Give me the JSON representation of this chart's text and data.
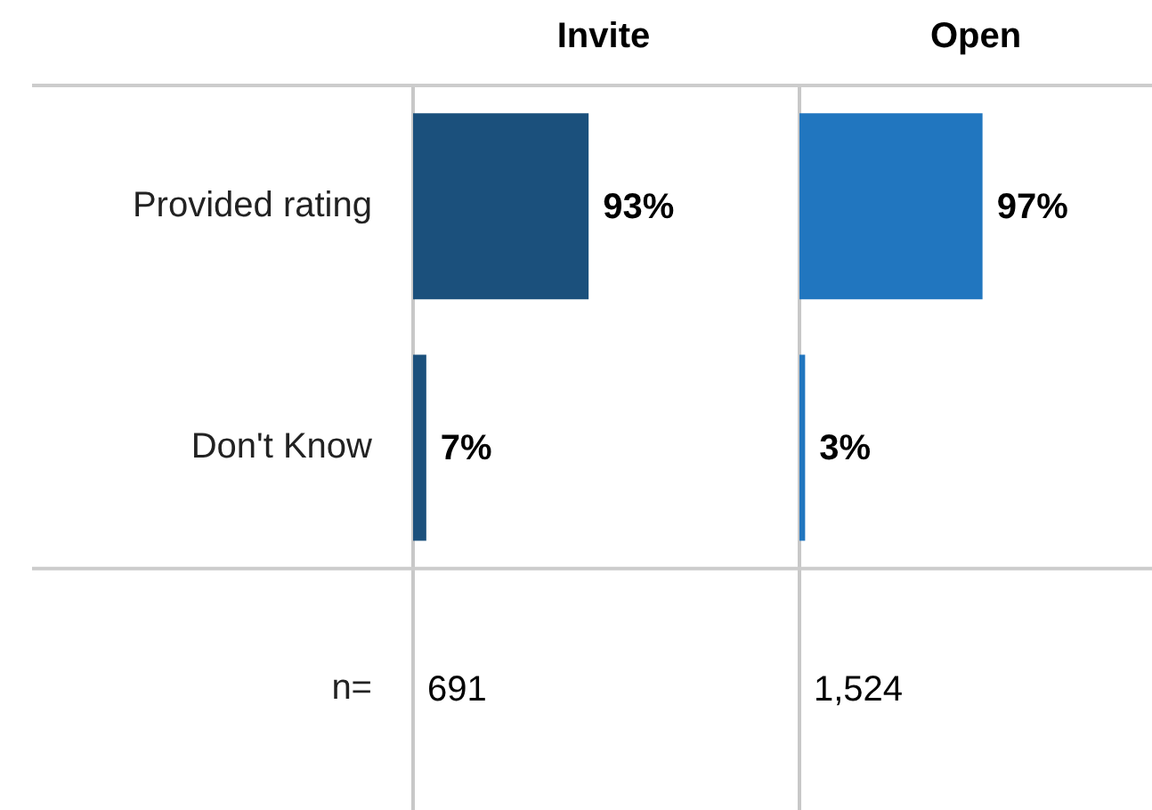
{
  "chart_data": [
    {
      "type": "bar",
      "orientation": "horizontal",
      "title": "Invite",
      "categories": [
        "Provided rating",
        "Don't Know",
        "n="
      ],
      "values": [
        93,
        7,
        null
      ],
      "value_labels": [
        "93%",
        "7%",
        "691"
      ],
      "color": "#1b507c",
      "tick_labels": "y"
    },
    {
      "type": "bar",
      "orientation": "horizontal",
      "title": "Open",
      "categories": [
        null,
        null,
        null
      ],
      "values": [
        97,
        3,
        null
      ],
      "value_labels": [
        "97%",
        "3%",
        "1,524"
      ],
      "color": "#2176bf",
      "tick_labels": false
    }
  ]
}
